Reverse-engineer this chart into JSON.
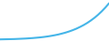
{
  "x": [
    0,
    1,
    2,
    3,
    4,
    5,
    6,
    7,
    8,
    9,
    10,
    11,
    12,
    13,
    14,
    15,
    16,
    17,
    18,
    19,
    20,
    21,
    22,
    23,
    24,
    25,
    26,
    27,
    28,
    29,
    30
  ],
  "y": [
    0.0,
    0.01,
    0.02,
    0.03,
    0.04,
    0.06,
    0.08,
    0.1,
    0.13,
    0.16,
    0.2,
    0.24,
    0.29,
    0.35,
    0.42,
    0.5,
    0.59,
    0.7,
    0.82,
    0.96,
    1.12,
    1.3,
    1.51,
    1.74,
    2.0,
    2.3,
    2.63,
    3.0,
    3.42,
    3.88,
    4.4
  ],
  "line_color": "#45b5e8",
  "line_width": 1.5,
  "background_color": "#ffffff",
  "xlim": [
    0,
    30
  ],
  "ylim": [
    -0.2,
    4.8
  ]
}
